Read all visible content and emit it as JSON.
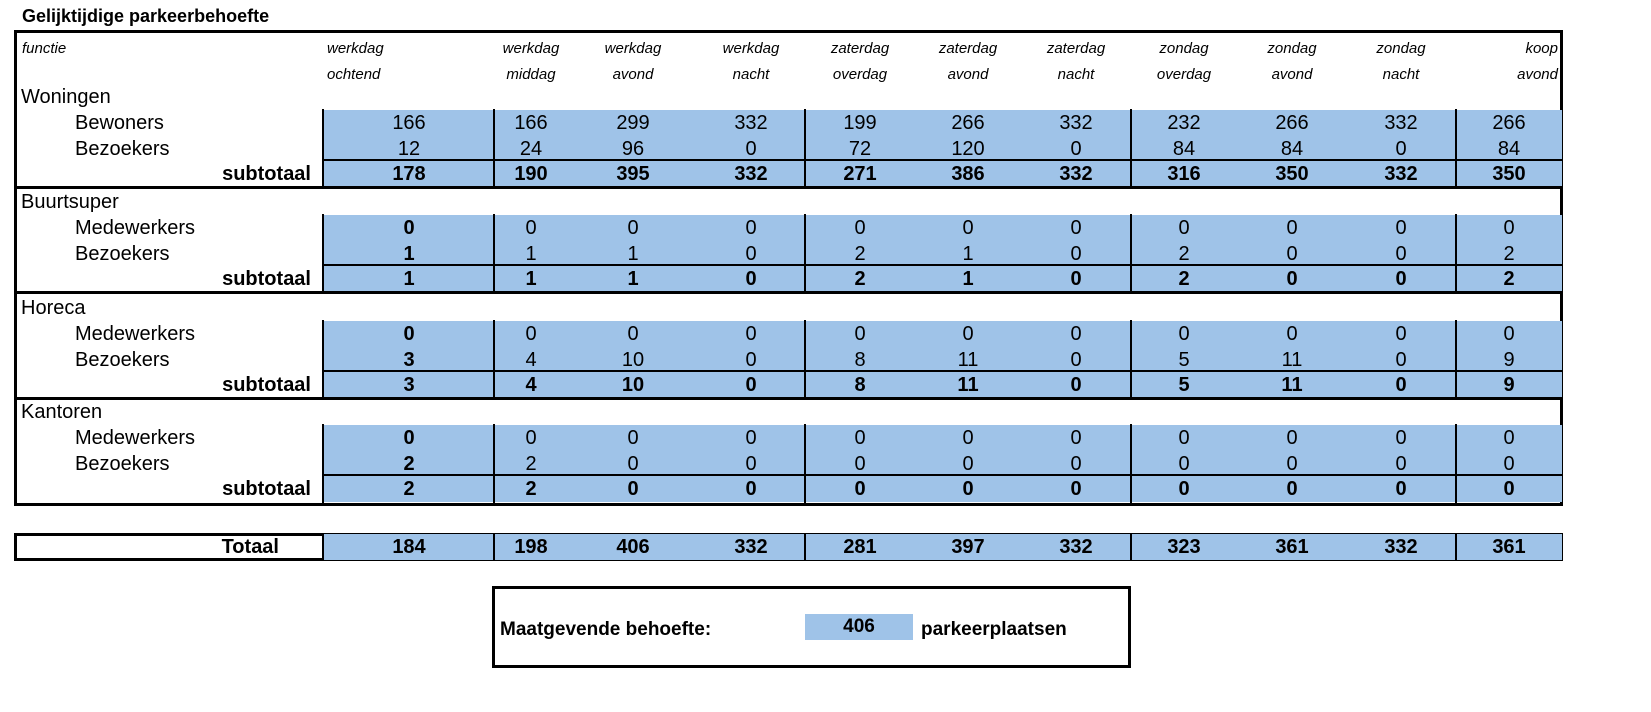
{
  "title": "Gelijktijdige parkeerbehoefte",
  "header": {
    "function_label": "functie",
    "columns": [
      {
        "l1": "werkdag",
        "l2": "ochtend"
      },
      {
        "l1": "werkdag",
        "l2": "middag"
      },
      {
        "l1": "werkdag",
        "l2": "avond"
      },
      {
        "l1": "werkdag",
        "l2": "nacht"
      },
      {
        "l1": "zaterdag",
        "l2": "overdag"
      },
      {
        "l1": "zaterdag",
        "l2": "avond"
      },
      {
        "l1": "zaterdag",
        "l2": "nacht"
      },
      {
        "l1": "zondag",
        "l2": "overdag"
      },
      {
        "l1": "zondag",
        "l2": "avond"
      },
      {
        "l1": "zondag",
        "l2": "nacht"
      },
      {
        "l1": "koop",
        "l2": "avond"
      }
    ]
  },
  "sections": [
    {
      "name": "Woningen",
      "rows": [
        {
          "label": "Bewoners",
          "values": [
            166,
            166,
            299,
            332,
            199,
            266,
            332,
            232,
            266,
            332,
            266
          ]
        },
        {
          "label": "Bezoekers",
          "values": [
            12,
            24,
            96,
            0,
            72,
            120,
            0,
            84,
            84,
            0,
            84
          ]
        }
      ],
      "subtotal_label": "subtotaal",
      "subtotal": [
        178,
        190,
        395,
        332,
        271,
        386,
        332,
        316,
        350,
        332,
        350
      ]
    },
    {
      "name": "Buurtsuper",
      "rows": [
        {
          "label": "Medewerkers",
          "values": [
            0,
            0,
            0,
            0,
            0,
            0,
            0,
            0,
            0,
            0,
            0
          ]
        },
        {
          "label": "Bezoekers",
          "values": [
            1,
            1,
            1,
            0,
            2,
            1,
            0,
            2,
            0,
            0,
            2
          ]
        }
      ],
      "subtotal_label": "subtotaal",
      "subtotal": [
        1,
        1,
        1,
        0,
        2,
        1,
        0,
        2,
        0,
        0,
        2
      ]
    },
    {
      "name": "Horeca",
      "rows": [
        {
          "label": "Medewerkers",
          "values": [
            0,
            0,
            0,
            0,
            0,
            0,
            0,
            0,
            0,
            0,
            0
          ]
        },
        {
          "label": "Bezoekers",
          "values": [
            3,
            4,
            10,
            0,
            8,
            11,
            0,
            5,
            11,
            0,
            9
          ]
        }
      ],
      "subtotal_label": "subtotaal",
      "subtotal": [
        3,
        4,
        10,
        0,
        8,
        11,
        0,
        5,
        11,
        0,
        9
      ]
    },
    {
      "name": "Kantoren",
      "rows": [
        {
          "label": "Medewerkers",
          "values": [
            0,
            0,
            0,
            0,
            0,
            0,
            0,
            0,
            0,
            0,
            0
          ]
        },
        {
          "label": "Bezoekers",
          "values": [
            2,
            2,
            0,
            0,
            0,
            0,
            0,
            0,
            0,
            0,
            0
          ]
        }
      ],
      "subtotal_label": "subtotaal",
      "subtotal": [
        2,
        2,
        0,
        0,
        0,
        0,
        0,
        0,
        0,
        0,
        0
      ]
    }
  ],
  "total": {
    "label": "Totaal",
    "values": [
      184,
      198,
      406,
      332,
      281,
      397,
      332,
      323,
      361,
      332,
      361
    ]
  },
  "summary": {
    "label": "Maatgevende behoefte:",
    "value": "406",
    "unit": "parkeerplaatsen"
  },
  "colors": {
    "fill": "#9fc3e8"
  }
}
